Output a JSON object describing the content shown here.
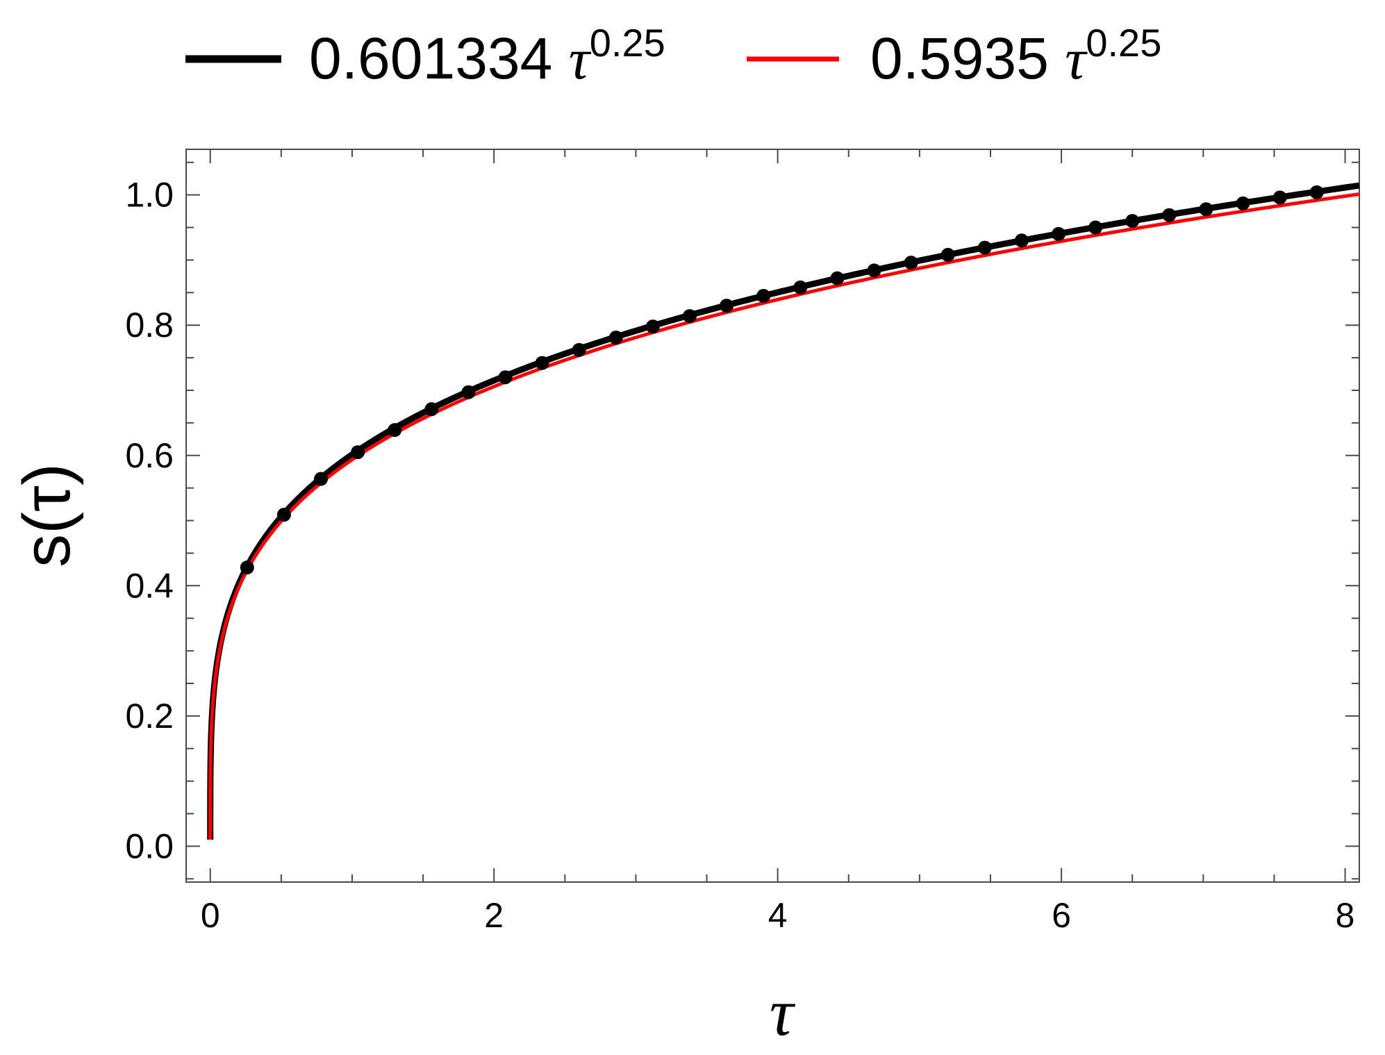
{
  "chart_data": {
    "type": "line",
    "xlabel": "τ",
    "ylabel": "s(τ)",
    "xlim": [
      -0.17,
      8.1
    ],
    "ylim": [
      -0.055,
      1.07
    ],
    "x_ticks": [
      0,
      2,
      4,
      6,
      8
    ],
    "x_tick_labels": [
      "0",
      "2",
      "4",
      "6",
      "8"
    ],
    "y_ticks": [
      0.0,
      0.2,
      0.4,
      0.6,
      0.8,
      1.0
    ],
    "y_tick_labels": [
      "0.0",
      "0.2",
      "0.4",
      "0.6",
      "0.8",
      "1.0"
    ],
    "grid": false,
    "legend_position": "top",
    "series": [
      {
        "name": "0.601334 τ^0.25",
        "legend_text": "0.601334 ",
        "legend_symbol": "τ",
        "legend_power": "0.25",
        "coefficient": 0.601334,
        "exponent": 0.25,
        "x_range": [
          0,
          8.1
        ],
        "color": "#000000",
        "style": "thick-line"
      },
      {
        "name": "0.5935 τ^0.25",
        "legend_text": "0.5935 ",
        "legend_symbol": "τ",
        "legend_power": "0.25",
        "coefficient": 0.5935,
        "exponent": 0.25,
        "x_range": [
          0,
          8.1
        ],
        "color": "#ff0000",
        "style": "line"
      }
    ],
    "points": {
      "color": "#000000",
      "x": [
        0.26,
        0.52,
        0.78,
        1.04,
        1.3,
        1.56,
        1.82,
        2.08,
        2.34,
        2.6,
        2.86,
        3.12,
        3.38,
        3.64,
        3.9,
        4.16,
        4.42,
        4.68,
        4.94,
        5.2,
        5.46,
        5.72,
        5.98,
        6.24,
        6.5,
        6.76,
        7.02,
        7.28,
        7.54,
        7.8
      ],
      "y": [
        0.428,
        0.509,
        0.564,
        0.605,
        0.639,
        0.671,
        0.697,
        0.72,
        0.742,
        0.762,
        0.781,
        0.798,
        0.814,
        0.83,
        0.845,
        0.858,
        0.872,
        0.884,
        0.896,
        0.908,
        0.919,
        0.93,
        0.94,
        0.95,
        0.96,
        0.969,
        0.978,
        0.987,
        0.996,
        1.004
      ]
    }
  }
}
